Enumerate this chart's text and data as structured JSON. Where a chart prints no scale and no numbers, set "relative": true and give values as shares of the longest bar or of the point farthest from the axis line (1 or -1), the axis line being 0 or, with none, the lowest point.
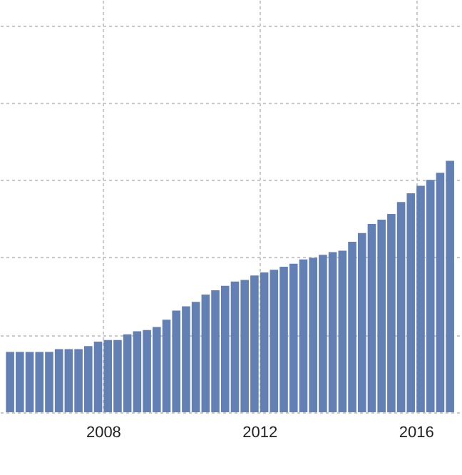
{
  "chart_data": {
    "type": "bar",
    "relative": true,
    "color": "#6280b4",
    "grid": true,
    "tick_labels": "x",
    "x": [
      2005.625,
      2005.875,
      2006.125,
      2006.375,
      2006.625,
      2006.875,
      2007.125,
      2007.375,
      2007.625,
      2007.875,
      2008.125,
      2008.375,
      2008.625,
      2008.875,
      2009.125,
      2009.375,
      2009.625,
      2009.875,
      2010.125,
      2010.375,
      2010.625,
      2010.875,
      2011.125,
      2011.375,
      2011.625,
      2011.875,
      2012.125,
      2012.375,
      2012.625,
      2012.875,
      2013.125,
      2013.375,
      2013.625,
      2013.875,
      2014.125,
      2014.375,
      2014.625,
      2014.875,
      2015.125,
      2015.375,
      2015.625,
      2015.875,
      2016.125,
      2016.375,
      2016.625,
      2016.875
    ],
    "values": [
      0.24,
      0.24,
      0.24,
      0.24,
      0.24,
      0.251,
      0.251,
      0.251,
      0.263,
      0.281,
      0.287,
      0.287,
      0.31,
      0.322,
      0.327,
      0.339,
      0.368,
      0.404,
      0.421,
      0.439,
      0.468,
      0.485,
      0.503,
      0.52,
      0.526,
      0.544,
      0.556,
      0.567,
      0.579,
      0.591,
      0.608,
      0.614,
      0.626,
      0.637,
      0.643,
      0.678,
      0.713,
      0.749,
      0.766,
      0.789,
      0.836,
      0.871,
      0.901,
      0.924,
      0.953,
      1
    ],
    "xlim": [
      2005.55,
      2017.0
    ],
    "xticks": [
      2008,
      2012,
      2016
    ]
  }
}
